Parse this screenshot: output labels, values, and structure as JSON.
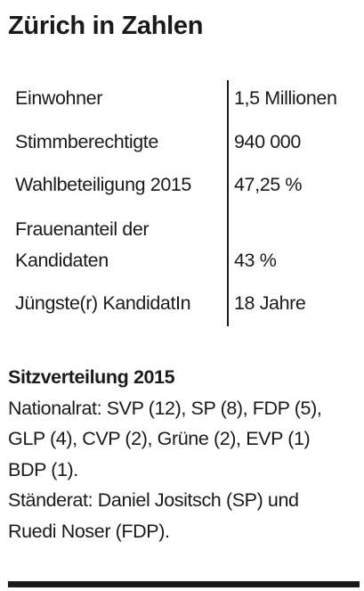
{
  "title": "Zürich in Zahlen",
  "facts": [
    {
      "label": "Einwohner",
      "value": "1,5 Millionen"
    },
    {
      "label": "Stimmberechtigte",
      "value": "940 000"
    },
    {
      "label": "Wahlbeteiligung 2015",
      "value": "47,25 %"
    },
    {
      "label_lines": [
        "Frauenanteil der",
        "Kandidaten"
      ],
      "value": "43 %"
    },
    {
      "label": "Jüngste(r) KandidatIn",
      "value": "18 Jahre"
    }
  ],
  "seats": {
    "heading": "Sitzverteilung 2015",
    "lines": [
      "Nationalrat: SVP (12), SP (8), FDP (5),",
      "GLP (4), CVP (2), Grüne (2), EVP (1)",
      "BDP (1).",
      "Ständerat: Daniel Jositsch (SP) und",
      "Ruedi Noser (FDP)."
    ]
  }
}
